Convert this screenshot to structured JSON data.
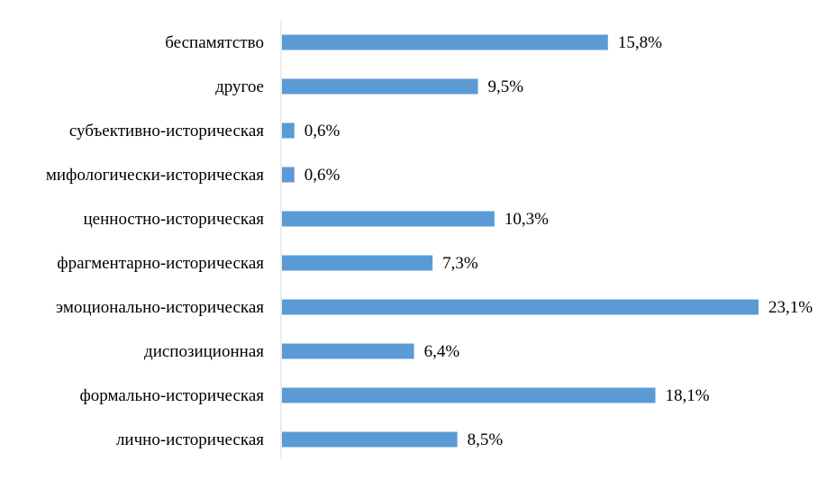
{
  "chart_data": {
    "type": "bar",
    "orientation": "horizontal",
    "categories": [
      "беспамятство",
      "другое",
      "субъективно-историческая",
      "мифологически-историческая",
      "ценностно-историческая",
      "фрагментарно-историческая",
      "эмоционально-историческая",
      "диспозиционная",
      "формально-историческая",
      "лично-историческая"
    ],
    "values": [
      15.8,
      9.5,
      0.6,
      0.6,
      10.3,
      7.3,
      23.1,
      6.4,
      18.1,
      8.5
    ],
    "value_labels": [
      "15,8%",
      "9,5%",
      "0,6%",
      "0,6%",
      "10,3%",
      "7,3%",
      "23,1%",
      "6,4%",
      "18,1%",
      "8,5%"
    ],
    "unit": "%",
    "xlim": [
      0,
      23.1
    ],
    "grid": false,
    "legend": "none",
    "bar_color": "#5b9bd5",
    "axis_color": "#d9d9d9"
  }
}
